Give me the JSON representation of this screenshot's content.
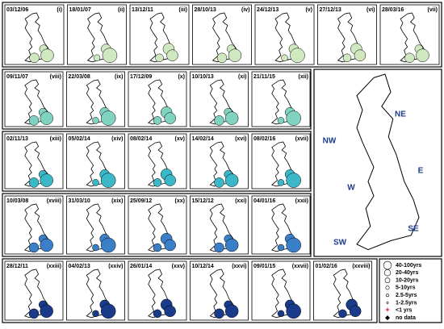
{
  "rows": [
    {
      "color": "#cfe8c0",
      "panels": [
        {
          "date": "03/12/06",
          "label": "(i)"
        },
        {
          "date": "18/01/07",
          "label": "(ii)"
        },
        {
          "date": "13/12/11",
          "label": "(iii)"
        },
        {
          "date": "28/10/13",
          "label": "(iv)"
        },
        {
          "date": "24/12/13",
          "label": "(v)"
        },
        {
          "date": "27/12/13",
          "label": "(vi)"
        },
        {
          "date": "28/03/16",
          "label": "(vii)"
        }
      ]
    },
    {
      "color": "#7fd3c0",
      "panels": [
        {
          "date": "09/11/07",
          "label": "(viii)"
        },
        {
          "date": "22/03/08",
          "label": "(ix)"
        },
        {
          "date": "17/12/09",
          "label": "(x)"
        },
        {
          "date": "10/10/13",
          "label": "(xi)"
        },
        {
          "date": "21/11/15",
          "label": "(xii)"
        }
      ]
    },
    {
      "color": "#3bb8c8",
      "panels": [
        {
          "date": "02/11/13",
          "label": "(xiii)"
        },
        {
          "date": "05/02/14",
          "label": "(xiv)"
        },
        {
          "date": "08/02/14",
          "label": "(xv)"
        },
        {
          "date": "14/02/14",
          "label": "(xvi)"
        },
        {
          "date": "08/02/16",
          "label": "(xvii)"
        }
      ]
    },
    {
      "color": "#3a7fc8",
      "panels": [
        {
          "date": "10/03/08",
          "label": "(xviii)"
        },
        {
          "date": "31/03/10",
          "label": "(xix)"
        },
        {
          "date": "25/09/12",
          "label": "(xx)"
        },
        {
          "date": "15/12/12",
          "label": "(xxi)"
        },
        {
          "date": "04/01/16",
          "label": "(xxii)"
        }
      ]
    },
    {
      "color": "#1a3a8a",
      "panels": [
        {
          "date": "28/12/11",
          "label": "(xxiii)"
        },
        {
          "date": "04/02/13",
          "label": "(xxiv)"
        },
        {
          "date": "26/01/14",
          "label": "(xxv)"
        },
        {
          "date": "10/12/14",
          "label": "(xxvi)"
        },
        {
          "date": "09/01/15",
          "label": "(xxvii)"
        },
        {
          "date": "01/02/16",
          "label": "(xxviii)"
        }
      ]
    }
  ],
  "regions": [
    "NE",
    "NW",
    "E",
    "W",
    "SE",
    "SW"
  ],
  "legend": [
    "40-100yrs",
    "20-40yrs",
    "10-20yrs",
    "5-10yrs",
    "2.5-5yrs",
    "1-2.5yrs",
    "<1 yrs",
    "no data"
  ]
}
